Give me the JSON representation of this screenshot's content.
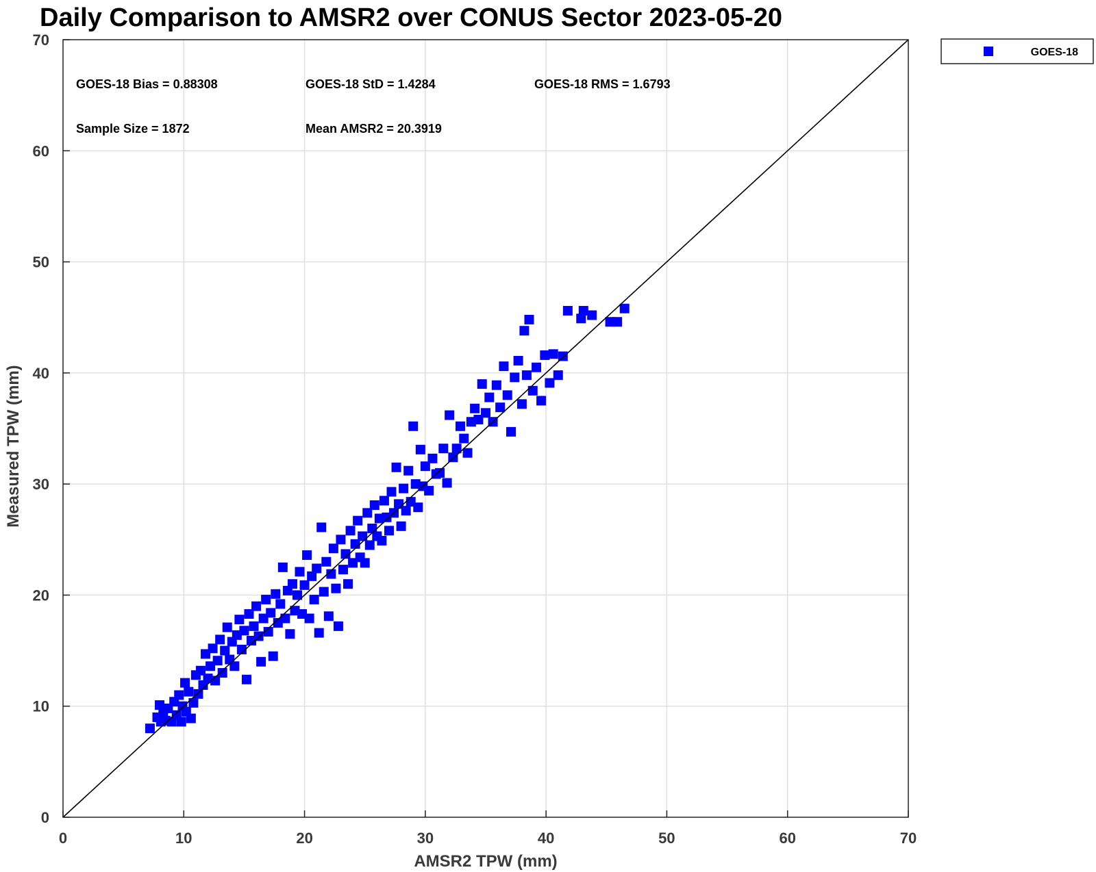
{
  "chart_data": {
    "type": "scatter",
    "title": "Daily Comparison to AMSR2 over CONUS Sector 2023-05-20",
    "xlabel": "AMSR2 TPW (mm)",
    "ylabel": "Measured TPW (mm)",
    "xlim": [
      0,
      70
    ],
    "ylim": [
      0,
      70
    ],
    "xticks": [
      0,
      10,
      20,
      30,
      40,
      50,
      60,
      70
    ],
    "yticks": [
      0,
      10,
      20,
      30,
      40,
      50,
      60,
      70
    ],
    "grid": true,
    "legend_position": "outside-top-right",
    "reference_line": "y = x",
    "colors": {
      "series": "#0000ff",
      "reference": "#000000",
      "grid": "#e0e0e0"
    },
    "annotations": [
      "GOES-18 Bias = 0.88308",
      "GOES-18 StD = 1.4284",
      "GOES-18 RMS = 1.6793",
      "Sample Size = 1872",
      "Mean AMSR2 = 20.3919"
    ],
    "series": [
      {
        "name": "GOES-18",
        "marker": "square",
        "points": [
          [
            7.2,
            8.0
          ],
          [
            7.8,
            9.0
          ],
          [
            8.0,
            10.1
          ],
          [
            8.1,
            8.6
          ],
          [
            8.3,
            9.5
          ],
          [
            8.5,
            8.7
          ],
          [
            8.7,
            9.8
          ],
          [
            9.0,
            8.6
          ],
          [
            9.2,
            10.4
          ],
          [
            9.4,
            9.2
          ],
          [
            9.6,
            11.0
          ],
          [
            9.8,
            8.6
          ],
          [
            9.9,
            10.0
          ],
          [
            10.1,
            12.1
          ],
          [
            10.2,
            9.5
          ],
          [
            10.4,
            11.3
          ],
          [
            10.6,
            8.9
          ],
          [
            10.8,
            10.3
          ],
          [
            11.0,
            12.8
          ],
          [
            11.2,
            11.1
          ],
          [
            11.4,
            13.2
          ],
          [
            11.6,
            11.9
          ],
          [
            11.8,
            14.7
          ],
          [
            12.0,
            12.5
          ],
          [
            12.2,
            13.6
          ],
          [
            12.4,
            15.2
          ],
          [
            12.6,
            12.3
          ],
          [
            12.8,
            14.1
          ],
          [
            13.0,
            16.0
          ],
          [
            13.2,
            13.0
          ],
          [
            13.4,
            15.0
          ],
          [
            13.6,
            17.1
          ],
          [
            13.8,
            14.2
          ],
          [
            14.0,
            15.8
          ],
          [
            14.2,
            13.6
          ],
          [
            14.4,
            16.4
          ],
          [
            14.6,
            17.8
          ],
          [
            14.8,
            15.1
          ],
          [
            15.0,
            16.8
          ],
          [
            15.2,
            12.4
          ],
          [
            15.4,
            18.3
          ],
          [
            15.6,
            15.9
          ],
          [
            15.8,
            17.2
          ],
          [
            16.0,
            19.0
          ],
          [
            16.2,
            16.3
          ],
          [
            16.4,
            14.0
          ],
          [
            16.6,
            17.9
          ],
          [
            16.8,
            19.6
          ],
          [
            17.0,
            16.7
          ],
          [
            17.2,
            18.4
          ],
          [
            17.4,
            14.5
          ],
          [
            17.6,
            20.1
          ],
          [
            17.8,
            17.5
          ],
          [
            18.0,
            19.2
          ],
          [
            18.2,
            22.5
          ],
          [
            18.4,
            17.9
          ],
          [
            18.6,
            20.4
          ],
          [
            18.8,
            16.5
          ],
          [
            19.0,
            21.0
          ],
          [
            19.2,
            18.6
          ],
          [
            19.4,
            20.0
          ],
          [
            19.6,
            22.1
          ],
          [
            19.8,
            18.3
          ],
          [
            20.0,
            20.9
          ],
          [
            20.2,
            23.6
          ],
          [
            20.4,
            17.9
          ],
          [
            20.6,
            21.7
          ],
          [
            20.8,
            19.6
          ],
          [
            21.0,
            22.4
          ],
          [
            21.2,
            16.6
          ],
          [
            21.4,
            26.1
          ],
          [
            21.6,
            20.3
          ],
          [
            21.8,
            23.0
          ],
          [
            22.0,
            18.1
          ],
          [
            22.2,
            21.9
          ],
          [
            22.4,
            24.2
          ],
          [
            22.6,
            20.6
          ],
          [
            22.8,
            17.2
          ],
          [
            23.0,
            25.0
          ],
          [
            23.2,
            22.3
          ],
          [
            23.4,
            23.7
          ],
          [
            23.6,
            21.0
          ],
          [
            23.8,
            25.8
          ],
          [
            24.0,
            22.9
          ],
          [
            24.2,
            24.6
          ],
          [
            24.4,
            26.7
          ],
          [
            24.6,
            23.4
          ],
          [
            24.8,
            25.3
          ],
          [
            25.0,
            22.9
          ],
          [
            25.2,
            27.4
          ],
          [
            25.4,
            24.5
          ],
          [
            25.6,
            26.0
          ],
          [
            25.8,
            28.1
          ],
          [
            26.0,
            25.3
          ],
          [
            26.2,
            26.9
          ],
          [
            26.4,
            24.9
          ],
          [
            26.6,
            28.5
          ],
          [
            26.8,
            27.0
          ],
          [
            27.0,
            25.8
          ],
          [
            27.2,
            29.3
          ],
          [
            27.4,
            27.4
          ],
          [
            27.6,
            31.5
          ],
          [
            27.8,
            28.2
          ],
          [
            28.0,
            26.2
          ],
          [
            28.2,
            29.6
          ],
          [
            28.4,
            27.6
          ],
          [
            28.6,
            31.2
          ],
          [
            28.8,
            28.4
          ],
          [
            29.0,
            35.2
          ],
          [
            29.2,
            30.0
          ],
          [
            29.4,
            27.9
          ],
          [
            29.6,
            33.1
          ],
          [
            29.8,
            29.8
          ],
          [
            30.0,
            31.6
          ],
          [
            30.3,
            29.4
          ],
          [
            30.6,
            32.3
          ],
          [
            30.9,
            30.9
          ],
          [
            31.2,
            31.0
          ],
          [
            31.5,
            33.2
          ],
          [
            31.8,
            30.1
          ],
          [
            32.0,
            36.2
          ],
          [
            32.3,
            32.4
          ],
          [
            32.6,
            33.2
          ],
          [
            32.9,
            35.2
          ],
          [
            33.2,
            34.1
          ],
          [
            33.5,
            32.8
          ],
          [
            33.8,
            35.6
          ],
          [
            34.1,
            36.8
          ],
          [
            34.4,
            35.8
          ],
          [
            34.7,
            39.0
          ],
          [
            35.0,
            36.4
          ],
          [
            35.3,
            37.8
          ],
          [
            35.6,
            35.6
          ],
          [
            35.9,
            38.9
          ],
          [
            36.2,
            36.9
          ],
          [
            36.5,
            40.6
          ],
          [
            36.8,
            38.0
          ],
          [
            37.1,
            34.7
          ],
          [
            37.4,
            39.6
          ],
          [
            37.7,
            41.1
          ],
          [
            38.0,
            37.2
          ],
          [
            38.2,
            43.8
          ],
          [
            38.4,
            39.8
          ],
          [
            38.6,
            44.8
          ],
          [
            38.9,
            38.4
          ],
          [
            39.2,
            40.5
          ],
          [
            39.6,
            37.5
          ],
          [
            39.9,
            41.6
          ],
          [
            40.3,
            39.1
          ],
          [
            40.6,
            41.7
          ],
          [
            41.0,
            39.8
          ],
          [
            41.4,
            41.5
          ],
          [
            41.8,
            45.6
          ],
          [
            42.9,
            44.9
          ],
          [
            43.1,
            45.6
          ],
          [
            43.8,
            45.2
          ],
          [
            45.3,
            44.6
          ],
          [
            45.9,
            44.6
          ],
          [
            46.5,
            45.8
          ]
        ]
      }
    ]
  }
}
